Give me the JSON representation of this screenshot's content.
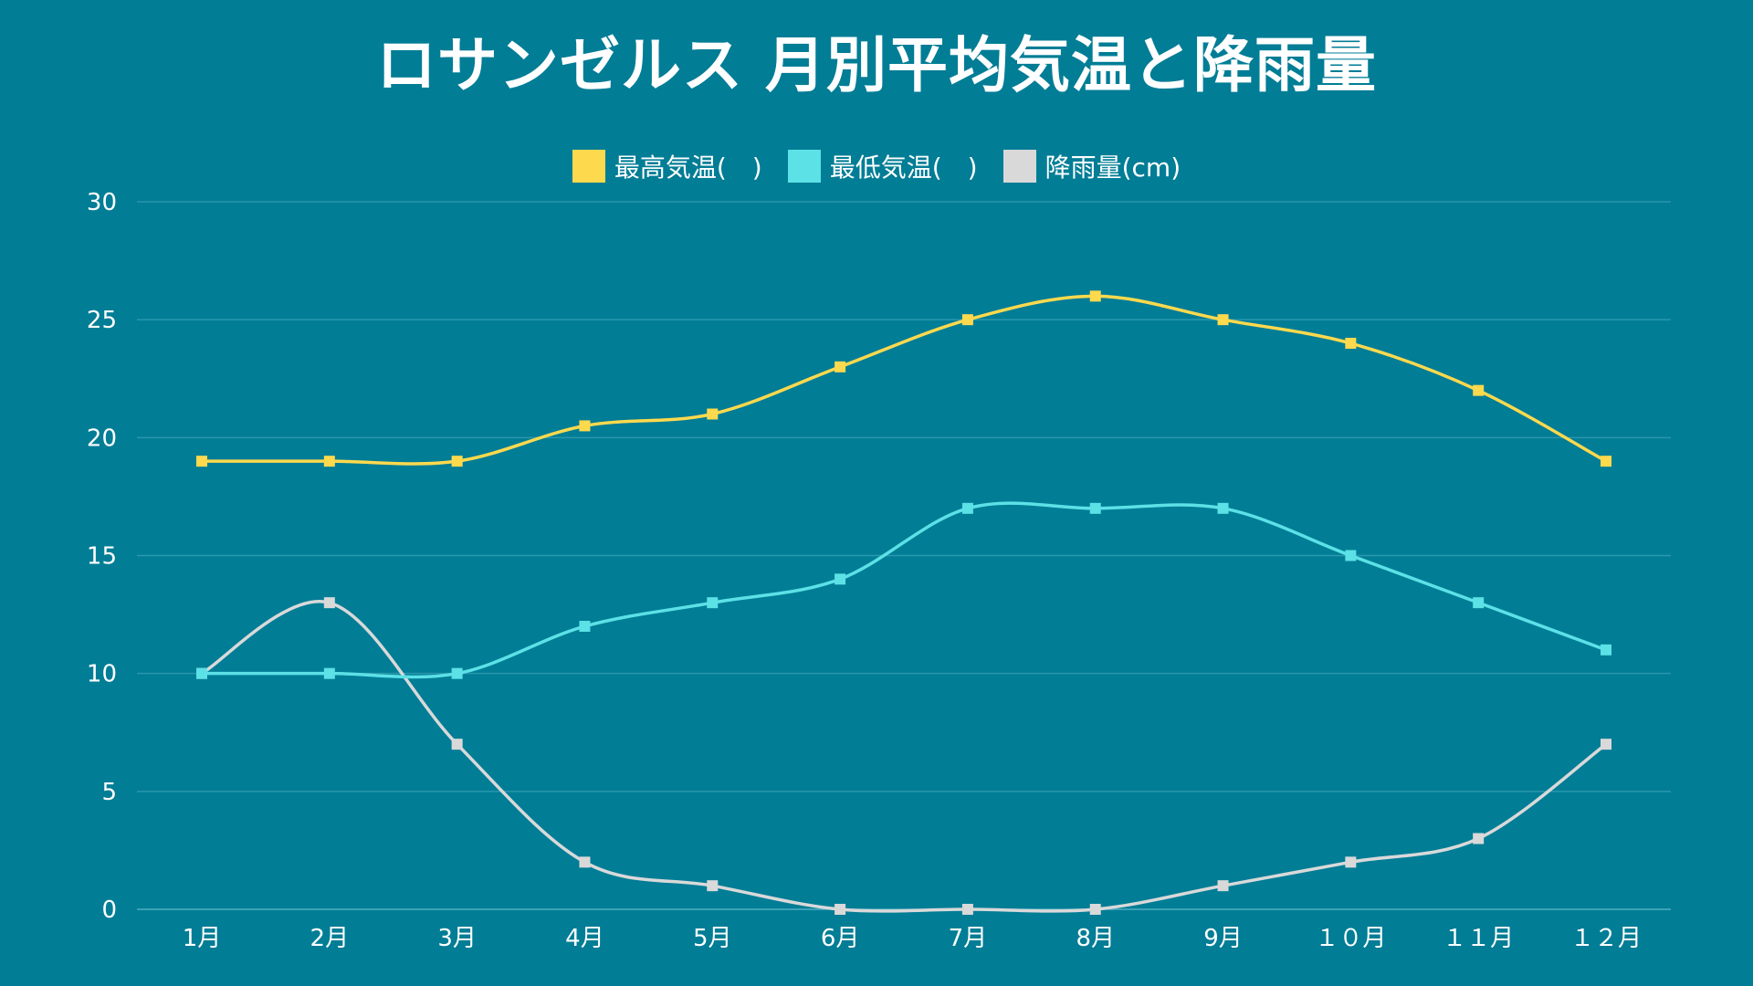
{
  "chart_data": {
    "type": "line",
    "title": "ロサンゼルス 月別平均気温と降雨量",
    "categories": [
      "1月",
      "2月",
      "3月",
      "4月",
      "5月",
      "6月",
      "7月",
      "8月",
      "9月",
      "１０月",
      "１１月",
      "１２月"
    ],
    "ylim": [
      0,
      30
    ],
    "yticks": [
      0,
      5,
      10,
      15,
      20,
      25,
      30
    ],
    "grid": true,
    "legend_position": "top-center",
    "series": [
      {
        "name": "最高気温(　)",
        "color": "#FDD94E",
        "values": [
          19,
          19,
          19,
          20.5,
          21,
          23,
          25,
          26,
          25,
          24,
          22,
          19
        ]
      },
      {
        "name": "最低気温(　)",
        "color": "#5CE1E6",
        "values": [
          10,
          10,
          10,
          12,
          13,
          14,
          17,
          17,
          17,
          15,
          13,
          11
        ]
      },
      {
        "name": "降雨量(cm)",
        "color": "#D9D9D9",
        "values": [
          10,
          13,
          7,
          2,
          1,
          0,
          0,
          0,
          1,
          2,
          3,
          7
        ]
      }
    ]
  },
  "colors": {
    "background": "#017D96",
    "gridline": "#2A97AC",
    "text": "#FFFFFF"
  }
}
